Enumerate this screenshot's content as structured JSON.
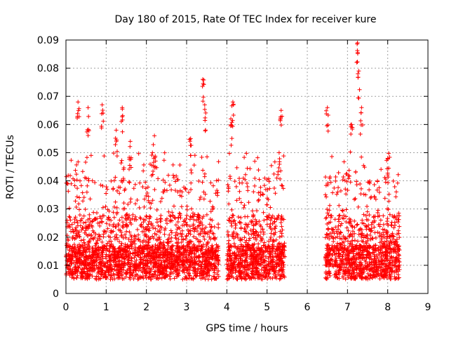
{
  "chart_data": {
    "type": "scatter",
    "title": "Day 180 of 2015, Rate Of TEC Index for receiver kure",
    "xlabel": "GPS time / hours",
    "ylabel": "ROTI / TECUs",
    "xlim": [
      0,
      9
    ],
    "ylim": [
      0,
      0.09
    ],
    "x_ticks": [
      "0",
      "1",
      "2",
      "3",
      "4",
      "5",
      "6",
      "7",
      "8",
      "9"
    ],
    "y_ticks": [
      "0",
      "0.01",
      "0.02",
      "0.03",
      "0.04",
      "0.05",
      "0.06",
      "0.07",
      "0.08",
      "0.09"
    ],
    "grid": true,
    "marker": "+",
    "marker_color": "#ff0000",
    "series": [
      {
        "name": "ROTI",
        "segments": [
          {
            "x_start": 0.0,
            "x_end": 3.8
          },
          {
            "x_start": 4.0,
            "x_end": 5.45
          },
          {
            "x_start": 6.45,
            "x_end": 8.3
          }
        ],
        "typical_range": [
          0.005,
          0.04
        ],
        "peaks": [
          {
            "x": 0.3,
            "y": 0.068
          },
          {
            "x": 0.55,
            "y": 0.066
          },
          {
            "x": 0.9,
            "y": 0.067
          },
          {
            "x": 1.4,
            "y": 0.066
          },
          {
            "x": 1.25,
            "y": 0.058
          },
          {
            "x": 1.6,
            "y": 0.054
          },
          {
            "x": 2.2,
            "y": 0.056
          },
          {
            "x": 2.15,
            "y": 0.05
          },
          {
            "x": 3.4,
            "y": 0.076
          },
          {
            "x": 3.45,
            "y": 0.067
          },
          {
            "x": 3.1,
            "y": 0.055
          },
          {
            "x": 4.15,
            "y": 0.068
          },
          {
            "x": 4.1,
            "y": 0.062
          },
          {
            "x": 5.35,
            "y": 0.065
          },
          {
            "x": 5.3,
            "y": 0.05
          },
          {
            "x": 6.5,
            "y": 0.066
          },
          {
            "x": 7.25,
            "y": 0.089
          },
          {
            "x": 7.28,
            "y": 0.079
          },
          {
            "x": 7.35,
            "y": 0.066
          },
          {
            "x": 7.1,
            "y": 0.06
          },
          {
            "x": 8.0,
            "y": 0.048
          }
        ]
      }
    ]
  }
}
